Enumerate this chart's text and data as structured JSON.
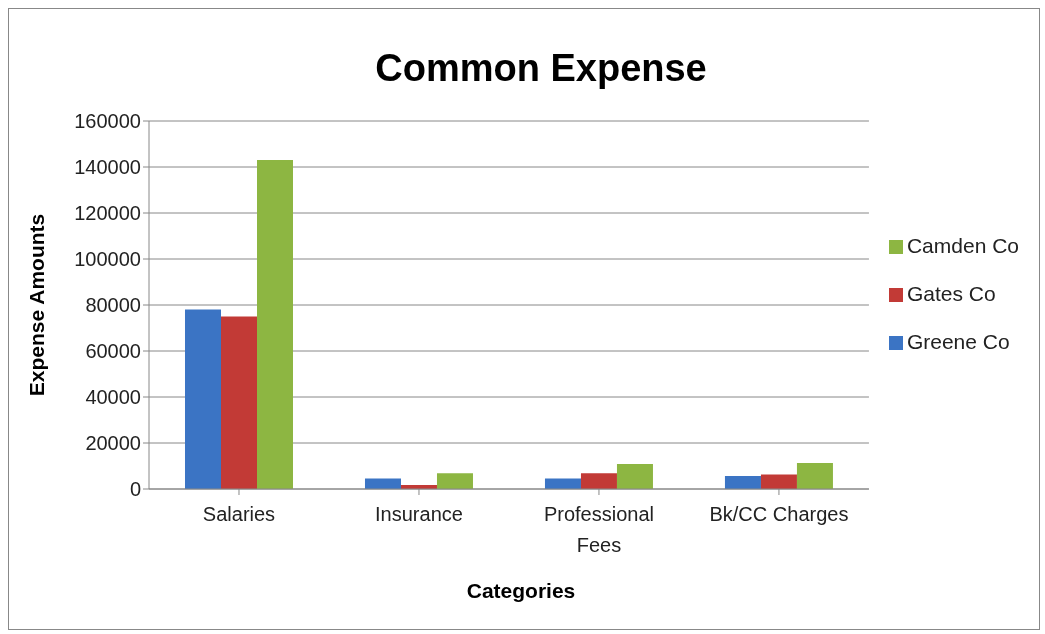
{
  "chart_data": {
    "type": "bar",
    "title": "Common Expense",
    "xlabel": "Categories",
    "ylabel": "Expense Amounts",
    "categories": [
      "Salaries",
      "Insurance",
      "Professional Fees",
      "Bk/CC Charges"
    ],
    "series": [
      {
        "name": "Greene Co",
        "color": "#3b74c4",
        "values": [
          78000,
          4600,
          4600,
          5700
        ]
      },
      {
        "name": "Gates Co",
        "color": "#c23a36",
        "values": [
          75000,
          1700,
          6900,
          6300
        ]
      },
      {
        "name": "Camden Co",
        "color": "#8db642",
        "values": [
          143000,
          6900,
          10900,
          11300
        ]
      }
    ],
    "ylim": [
      0,
      160000
    ],
    "yticks": [
      0,
      20000,
      40000,
      60000,
      80000,
      100000,
      120000,
      140000,
      160000
    ],
    "grid": "y",
    "legend": "right"
  }
}
